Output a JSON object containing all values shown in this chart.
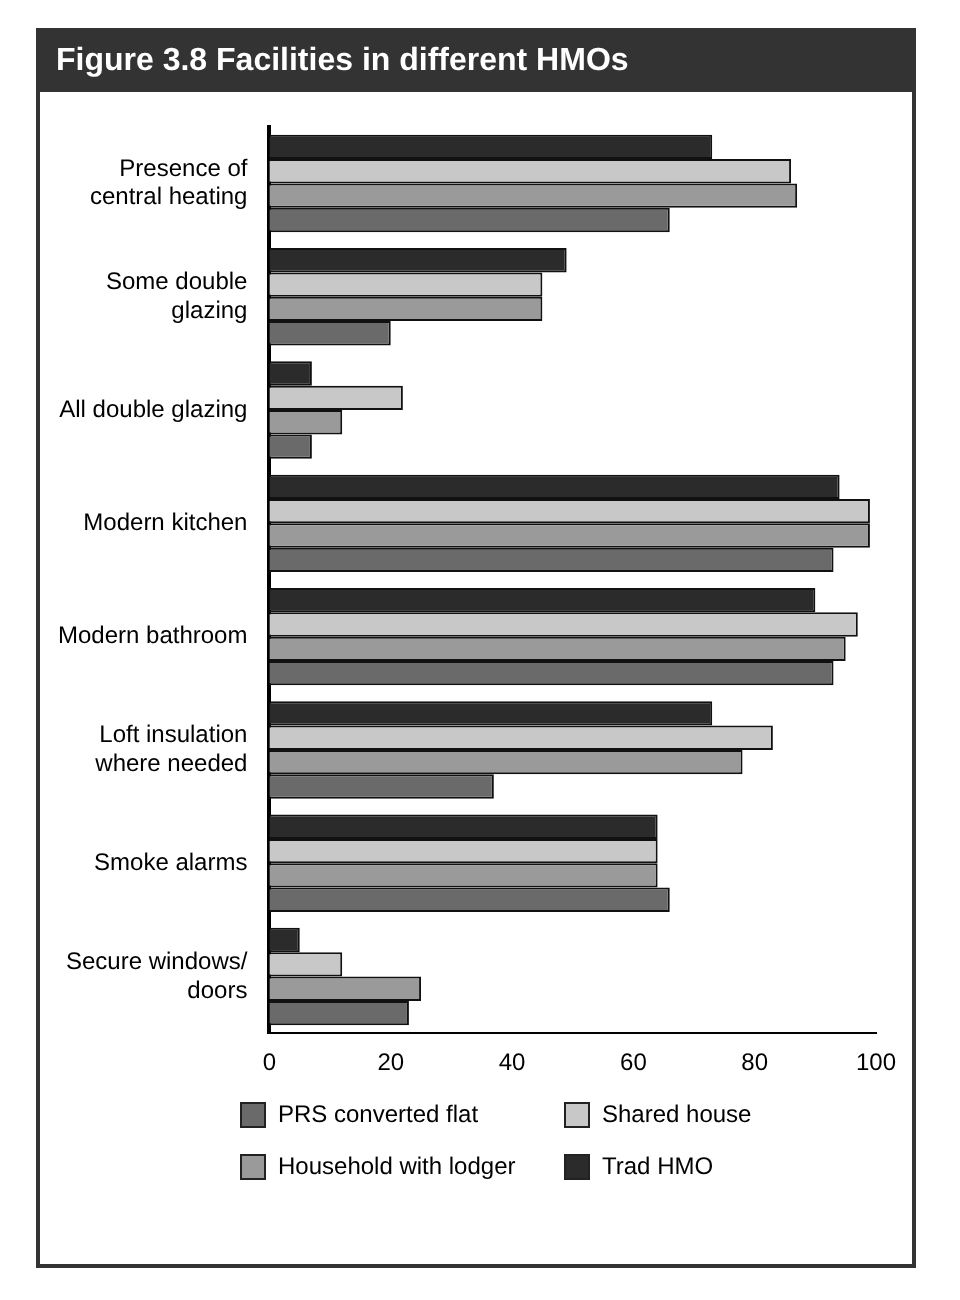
{
  "chart_data": {
    "type": "bar",
    "orientation": "horizontal",
    "title": "Figure 3.8 Facilities in different HMOs",
    "categories": [
      "Presence of central heating",
      "Some double glazing",
      "All double glazing",
      "Modern kitchen",
      "Modern bathroom",
      "Loft insulation where needed",
      "Smoke alarms",
      "Secure windows/ doors"
    ],
    "series": [
      {
        "name": "PRS converted flat",
        "color": "#6a6a6a",
        "values": [
          66,
          20,
          7,
          93,
          93,
          37,
          66,
          23
        ]
      },
      {
        "name": "Household with lodger",
        "color": "#9a9a9a",
        "values": [
          87,
          45,
          12,
          99,
          95,
          78,
          64,
          25
        ]
      },
      {
        "name": "Shared house",
        "color": "#c8c8c8",
        "values": [
          86,
          45,
          22,
          99,
          97,
          83,
          64,
          12
        ]
      },
      {
        "name": "Trad HMO",
        "color": "#2b2b2b",
        "values": [
          73,
          49,
          7,
          94,
          90,
          73,
          64,
          5
        ]
      }
    ],
    "xlim": [
      0,
      100
    ],
    "xticks": [
      0,
      20,
      40,
      60,
      80,
      100
    ],
    "grid": false,
    "legend": "bottom"
  }
}
